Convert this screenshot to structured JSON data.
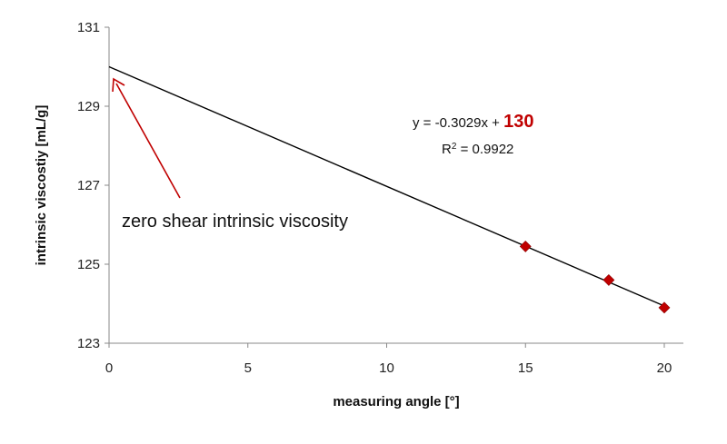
{
  "chart_data": {
    "type": "scatter",
    "xlabel": "measuring angle [°]",
    "ylabel": "intrinsic viscostiy  [mL/g]",
    "xlim": [
      0,
      20
    ],
    "ylim": [
      123,
      131
    ],
    "xticks": [
      "0",
      "5",
      "10",
      "15",
      "20"
    ],
    "yticks": [
      "123",
      "125",
      "127",
      "129",
      "131"
    ],
    "grid": false,
    "legend": "none",
    "series": [
      {
        "x": [
          15,
          18,
          20
        ],
        "y": [
          125.45,
          124.6,
          123.9
        ],
        "marker": "diamond",
        "color": "#c00000"
      }
    ],
    "trendline": {
      "slope": -0.3029,
      "intercept": 130,
      "x_range": [
        0,
        20
      ],
      "color": "#000000"
    },
    "annotations": {
      "equation_prefix": "y = -0.3029x + ",
      "equation_intercept": "130",
      "r2_label": "R",
      "r2_sup": "2",
      "r2_value": " = 0.9922",
      "zero_shear_label": "zero shear intrinsic viscosity",
      "arrow_color": "#c00000"
    }
  }
}
